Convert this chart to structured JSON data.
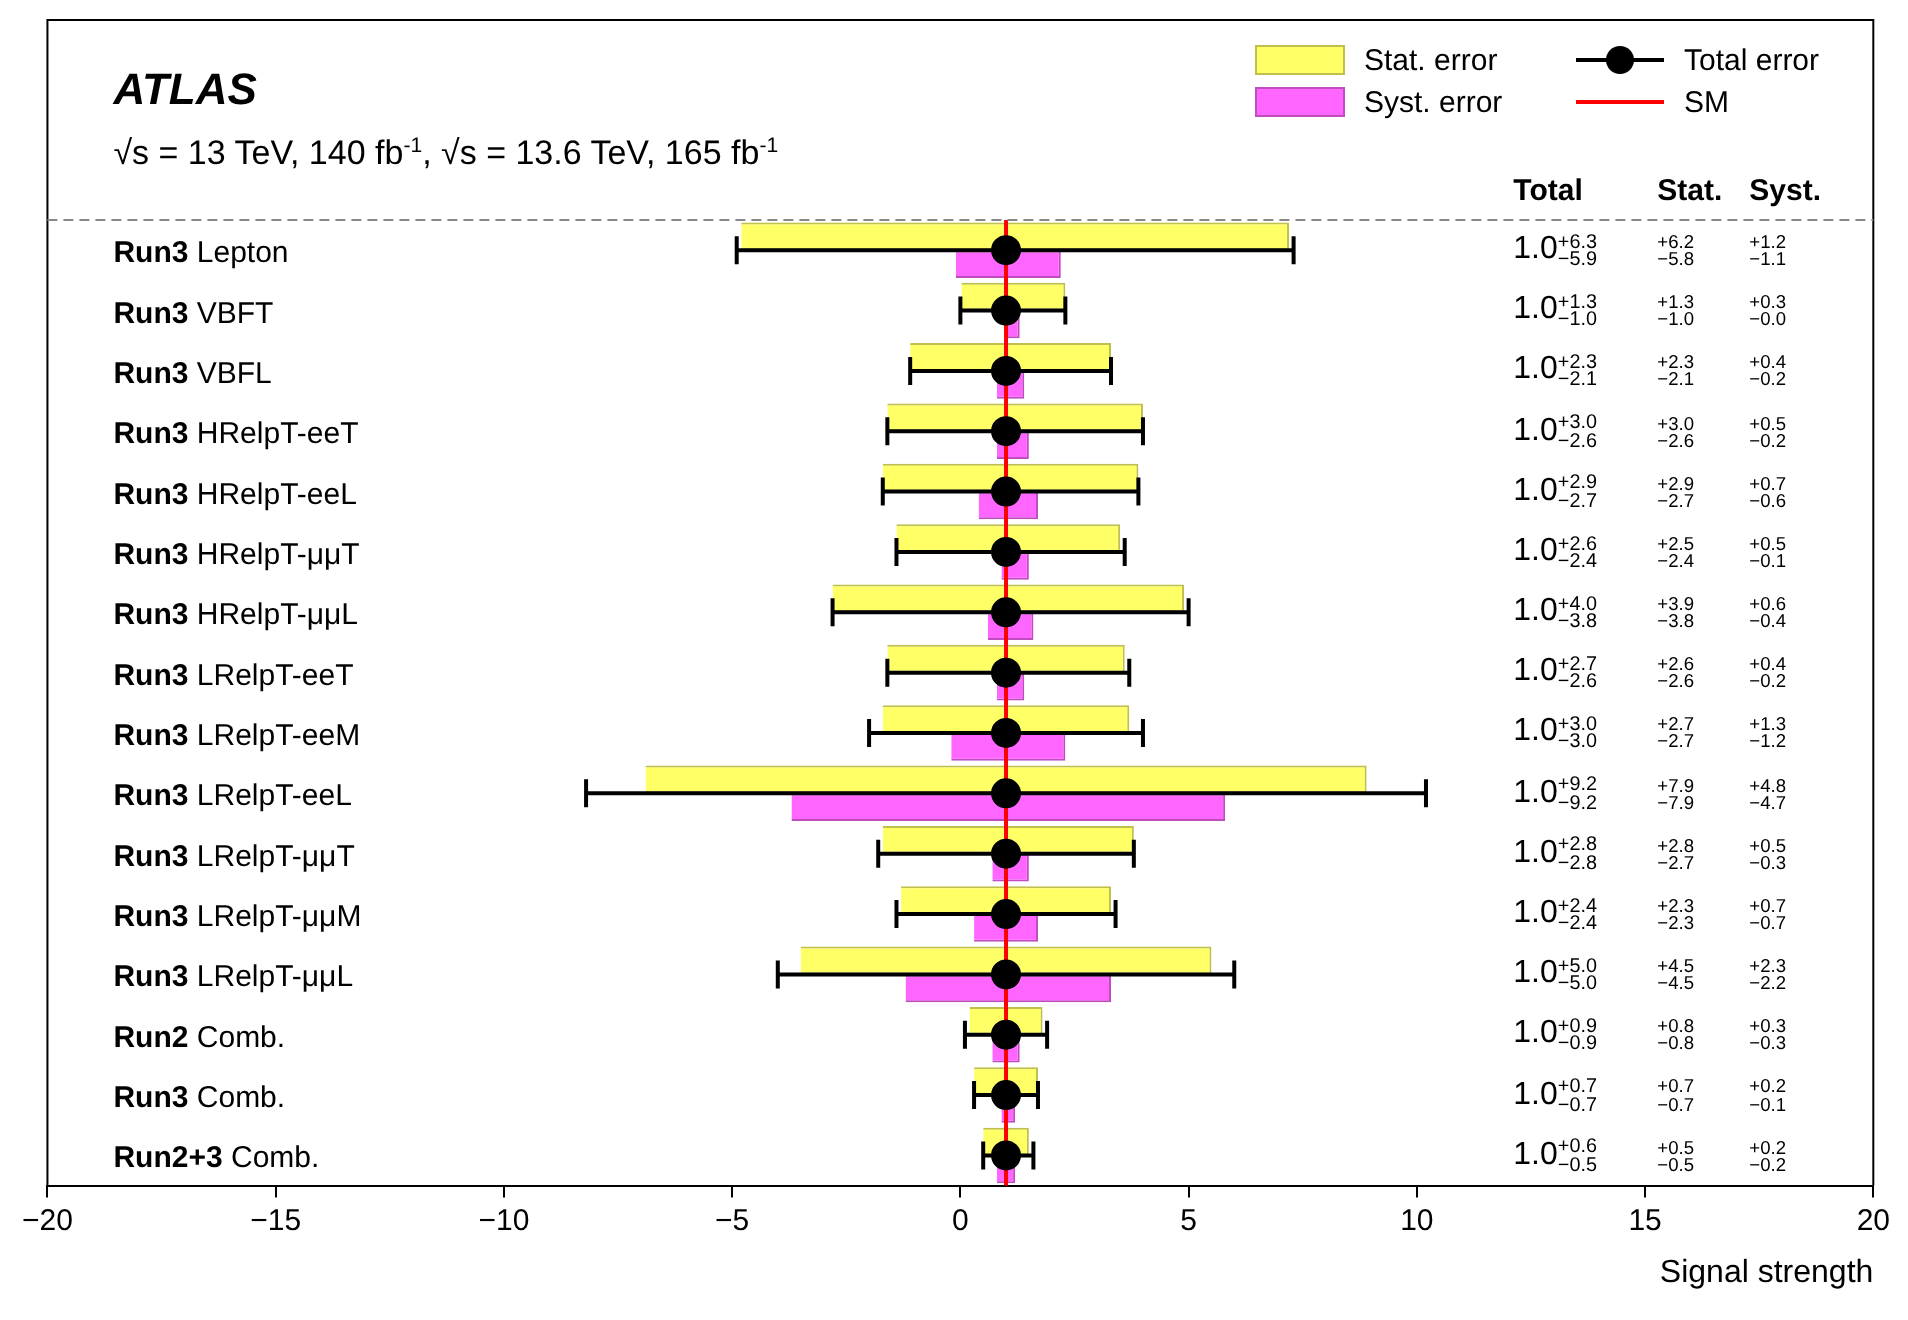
{
  "chart_data": {
    "type": "bar",
    "orientation": "horizontal",
    "title": "ATLAS",
    "subtitle": "√s = 13 TeV, 140 fb$^{-1}$, √s = 13.6 TeV, 165 fb$^{-1}$",
    "xlabel": "Signal strength",
    "categories": [
      "Run3 Lepton",
      "Run3 VBFT",
      "Run3 VBFL",
      "Run3 HRelpT-eeT",
      "Run3 HRelpT-eeL",
      "Run3 HRelpT-μμT",
      "Run3 HRelpT-μμL",
      "Run3 LRelpT-eeT",
      "Run3 LRelpT-eeM",
      "Run3 LRelpT-eeL",
      "Run3 LRelpT-μμT",
      "Run3 LRelpT-μμM",
      "Run3 LRelpT-μμL",
      "Run2 Comb.",
      "Run3 Comb.",
      "Run2+3 Comb."
    ],
    "xlim": [
      -20,
      20
    ],
    "xticks": [
      -20,
      -15,
      -10,
      -5,
      0,
      5,
      10,
      15,
      20
    ],
    "grid": false,
    "legend": "top right",
    "annotations": [
      "Total",
      "Stat.",
      "Syst.",
      "1.0$^{+6.3}$$_{−5.9}$",
      "1.0$^{+1.3}$$_{−1.0}$",
      "1.0$^{+2.3}$$_{−2.1}$",
      "1.0$^{+3.0}$$_{−2.6}$",
      "1.0$^{+2.9}$$_{−2.7}$",
      "1.0$^{+2.6}$$_{−2.4}$",
      "1.0$^{+4.0}$$_{−3.8}$",
      "1.0$^{+2.7}$$_{−2.6}$",
      "1.0$^{+3.0}$$_{−3.0}$",
      "1.0$^{+9.2}$$_{−9.2}$",
      "1.0$^{+2.8}$$_{−2.8}$",
      "1.0$^{+2.4}$$_{−2.4}$",
      "1.0$^{+5.0}$$_{−5.0}$",
      "1.0$^{+0.9}$$_{−0.9}$",
      "1.0$^{+0.7}$$_{−0.7}$",
      "1.0$^{+0.6}$$_{−0.5}$"
    ],
    "ref_lines": [
      {
        "axis": "x",
        "value": 1,
        "label": "SM",
        "color": "#ff0000"
      }
    ],
    "series": [
      {
        "name": "Stat. error",
        "color": "#ffff66",
        "base": [
          -4.8,
          0.0,
          -1.1,
          -1.6,
          -1.7,
          -1.4,
          -2.8,
          -1.6,
          -1.7,
          -6.9,
          -1.7,
          -1.3,
          -3.5,
          0.2,
          0.3,
          0.5
        ],
        "values": [
          12.0,
          2.3,
          4.4,
          5.6,
          5.6,
          4.9,
          7.7,
          5.2,
          5.4,
          15.8,
          5.5,
          4.6,
          9.0,
          1.6,
          1.4,
          1.0
        ],
        "value_labels": [
          "$^{+6.2}$$_{−5.8}$",
          "$^{+1.3}$$_{−1.0}$",
          "$^{+2.3}$$_{−2.1}$",
          "$^{+3.0}$$_{−2.6}$",
          "$^{+2.9}$$_{−2.7}$",
          "$^{+2.5}$$_{−2.4}$",
          "$^{+3.9}$$_{−3.8}$",
          "$^{+2.6}$$_{−2.6}$",
          "$^{+2.7}$$_{−2.7}$",
          "$^{+7.9}$$_{−7.9}$",
          "$^{+2.8}$$_{−2.7}$",
          "$^{+2.3}$$_{−2.3}$",
          "$^{+4.5}$$_{−4.5}$",
          "$^{+0.8}$$_{−0.8}$",
          "$^{+0.7}$$_{−0.7}$",
          "$^{+0.5}$$_{−0.5}$"
        ]
      },
      {
        "name": "Syst. error",
        "color": "#ff66ff",
        "base": [
          -0.1,
          1.0,
          0.8,
          0.8,
          0.4,
          0.9,
          0.6,
          0.8,
          -0.2,
          -3.7,
          0.7,
          0.3,
          -1.2,
          0.7,
          0.9,
          0.8
        ],
        "values": [
          2.3,
          0.3,
          0.6,
          0.7,
          1.3,
          0.6,
          1.0,
          0.6,
          2.5,
          9.5,
          0.8,
          1.4,
          4.5,
          0.6,
          0.3,
          0.4
        ],
        "value_labels": [
          "$^{+1.2}$$_{−1.1}$",
          "$^{+0.3}$$_{−0.0}$",
          "$^{+0.4}$$_{−0.2}$",
          "$^{+0.5}$$_{−0.2}$",
          "$^{+0.7}$$_{−0.6}$",
          "$^{+0.5}$$_{−0.1}$",
          "$^{+0.6}$$_{−0.4}$",
          "$^{+0.4}$$_{−0.2}$",
          "$^{+1.3}$$_{−1.2}$",
          "$^{+4.8}$$_{−4.7}$",
          "$^{+0.5}$$_{−0.3}$",
          "$^{+0.7}$$_{−0.7}$",
          "$^{+2.3}$$_{−2.2}$",
          "$^{+0.3}$$_{−0.3}$",
          "$^{+0.2}$$_{−0.1}$",
          "$^{+0.2}$$_{−0.2}$"
        ]
      },
      {
        "name": "Total error",
        "type": "scatter",
        "color": "#000000",
        "marker": "circle",
        "values": [
          1,
          1,
          1,
          1,
          1,
          1,
          1,
          1,
          1,
          1,
          1,
          1,
          1,
          1,
          1,
          1
        ],
        "errors": [
          [
            -4.9,
            7.3
          ],
          [
            0.0,
            2.3
          ],
          [
            -1.1,
            3.3
          ],
          [
            -1.6,
            4.0
          ],
          [
            -1.7,
            3.9
          ],
          [
            -1.4,
            3.6
          ],
          [
            -2.8,
            5.0
          ],
          [
            -1.6,
            3.7
          ],
          [
            -2.0,
            4.0
          ],
          [
            -8.2,
            10.2
          ],
          [
            -1.8,
            3.8
          ],
          [
            -1.4,
            3.4
          ],
          [
            -4.0,
            6.0
          ],
          [
            0.1,
            1.9
          ],
          [
            0.3,
            1.7
          ],
          [
            0.5,
            1.6
          ]
        ]
      }
    ]
  }
}
